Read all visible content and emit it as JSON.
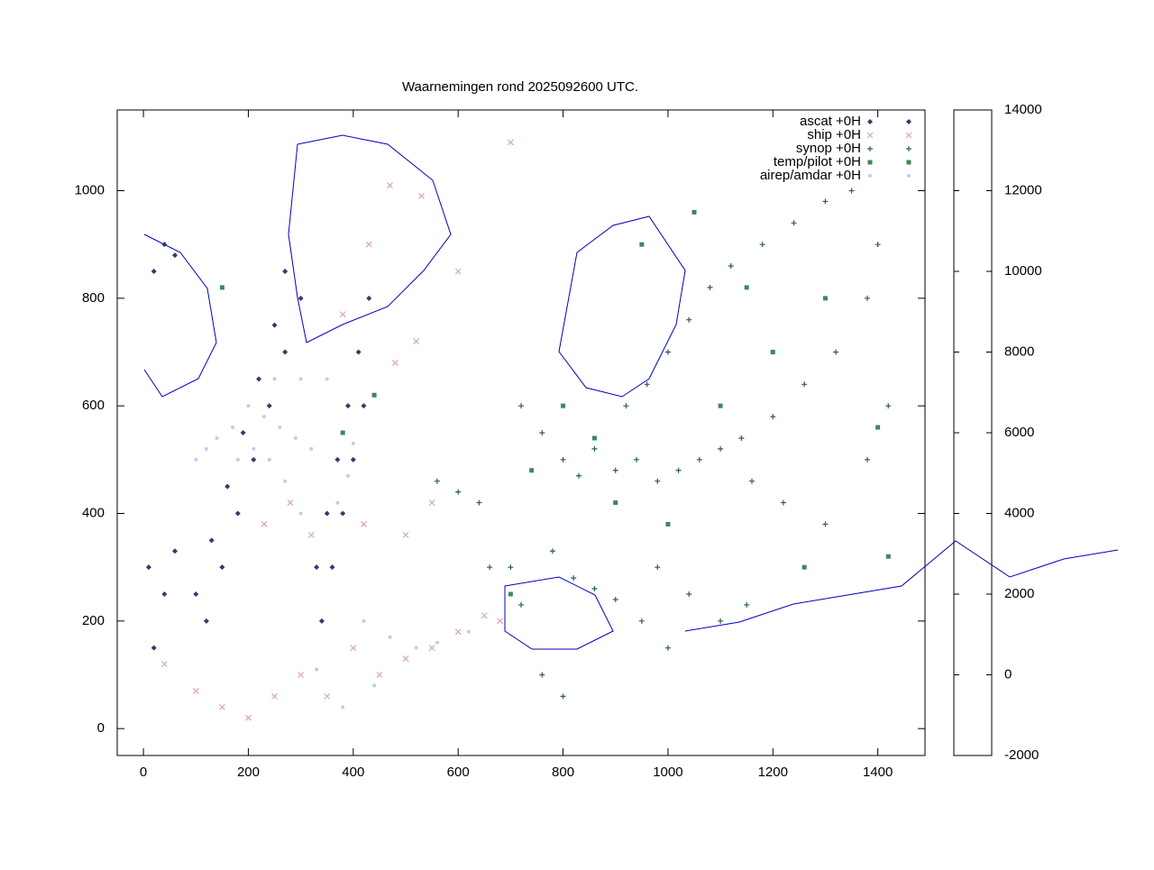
{
  "chart_data": {
    "type": "scatter",
    "title": "Waarnemingen rond 2025092600 UTC.",
    "xlim": [
      -50,
      1490
    ],
    "ylim": [
      -50,
      1150
    ],
    "xticks": [
      0,
      200,
      400,
      600,
      800,
      1000,
      1200,
      1400
    ],
    "yticks": [
      0,
      200,
      400,
      600,
      800,
      1000
    ],
    "legend": "top-right",
    "colorbar": {
      "lim": [
        -2000,
        14000
      ],
      "ticks": [
        -2000,
        0,
        2000,
        4000,
        6000,
        8000,
        10000,
        12000,
        14000
      ],
      "colors": [
        "#000000",
        "#2a1a3a",
        "#343a6a",
        "#2b6a6e",
        "#3f8f55",
        "#9c9a5a",
        "#d0908a",
        "#e0a0c8",
        "#d8c0f0",
        "#d0e8f8",
        "#ffffff"
      ]
    },
    "series": [
      {
        "name": "ascat +0H",
        "color": "#343a6a",
        "marker": "diamond",
        "x": [
          10,
          20,
          40,
          60,
          100,
          130,
          160,
          190,
          220,
          250,
          270,
          120,
          150,
          180,
          210,
          240,
          270,
          300,
          330,
          350,
          370,
          390,
          410,
          430,
          340,
          360,
          380,
          400,
          420,
          20,
          40,
          60
        ],
        "values": [
          300,
          150,
          250,
          330,
          250,
          350,
          450,
          550,
          650,
          750,
          850,
          200,
          300,
          400,
          500,
          600,
          700,
          800,
          300,
          400,
          500,
          600,
          700,
          800,
          200,
          300,
          400,
          500,
          600,
          850,
          900,
          880
        ]
      },
      {
        "name": "ship +0H",
        "color": "#d8a0c8",
        "marker": "cross",
        "x": [
          40,
          100,
          150,
          200,
          250,
          300,
          350,
          400,
          450,
          500,
          550,
          600,
          650,
          680,
          230,
          280,
          320,
          420,
          500,
          550,
          470,
          530,
          700,
          600,
          480,
          520,
          380,
          430
        ],
        "values": [
          120,
          70,
          40,
          20,
          60,
          100,
          60,
          150,
          100,
          130,
          150,
          180,
          210,
          200,
          380,
          420,
          360,
          380,
          360,
          420,
          1010,
          990,
          1090,
          850,
          680,
          720,
          770,
          900
        ]
      },
      {
        "name": "synop +0H",
        "color": "#2b5a6e",
        "marker": "plus",
        "x": [
          720,
          760,
          800,
          830,
          860,
          900,
          940,
          980,
          1020,
          1060,
          1100,
          1140,
          920,
          960,
          1000,
          1040,
          1080,
          1120,
          1180,
          1240,
          1300,
          1350,
          1400,
          1380,
          1320,
          1260,
          1200,
          1160,
          1220,
          1300,
          1380,
          1420,
          780,
          820,
          860,
          900,
          950,
          1000,
          760,
          800,
          720,
          700,
          660,
          640,
          600,
          560,
          980,
          1040,
          1100,
          1150
        ],
        "values": [
          600,
          550,
          500,
          470,
          520,
          480,
          500,
          460,
          480,
          500,
          520,
          540,
          600,
          640,
          700,
          760,
          820,
          860,
          900,
          940,
          980,
          1000,
          900,
          800,
          700,
          640,
          580,
          460,
          420,
          380,
          500,
          600,
          330,
          280,
          260,
          240,
          200,
          150,
          100,
          60,
          230,
          300,
          300,
          420,
          440,
          460,
          300,
          250,
          200,
          230
        ]
      },
      {
        "name": "temp/pilot +0H",
        "color": "#3a8a5a",
        "marker": "square",
        "x": [
          740,
          860,
          900,
          1000,
          1100,
          1200,
          1300,
          1400,
          1420,
          950,
          1050,
          1150,
          800,
          700,
          1260,
          440,
          380,
          150
        ],
        "values": [
          480,
          540,
          420,
          380,
          600,
          700,
          800,
          560,
          320,
          900,
          960,
          820,
          600,
          250,
          300,
          620,
          550,
          820
        ]
      },
      {
        "name": "airep/amdar +0H",
        "color": "#c8c8f0",
        "marker": "circle",
        "x": [
          200,
          230,
          260,
          290,
          320,
          250,
          300,
          350,
          170,
          140,
          120,
          100,
          400,
          390,
          370,
          300,
          270,
          240,
          210,
          180,
          420,
          470,
          520,
          560,
          620,
          440,
          380,
          330
        ],
        "values": [
          600,
          580,
          560,
          540,
          520,
          650,
          650,
          650,
          560,
          540,
          520,
          500,
          530,
          470,
          420,
          400,
          460,
          500,
          520,
          500,
          200,
          170,
          150,
          160,
          180,
          80,
          40,
          110
        ]
      }
    ]
  }
}
